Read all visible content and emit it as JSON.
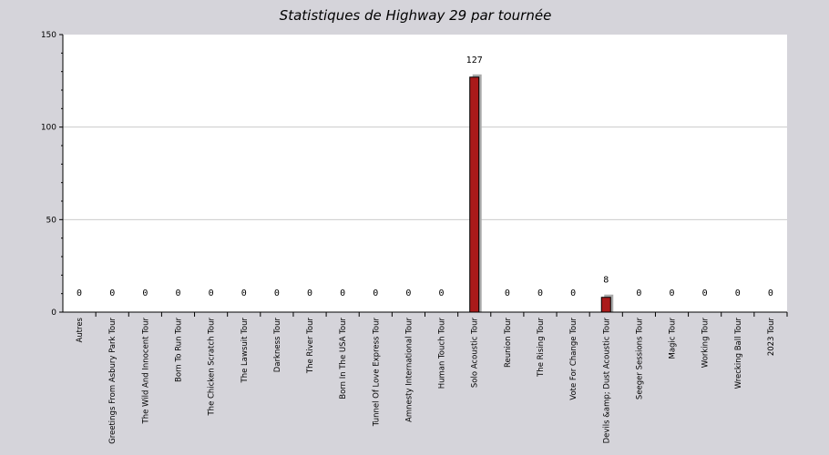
{
  "colors": {
    "background": "#d5d4da",
    "plot_background": "#ffffff",
    "bar_fill": "#aa1a1a",
    "bar_shadow": "#aaaaaa",
    "gridline": "#cccccc",
    "axis": "#000000"
  },
  "chart_data": {
    "type": "bar",
    "title": "Statistiques de Highway 29 par tournée",
    "xlabel": "",
    "ylabel": "",
    "ylim": [
      0,
      150
    ],
    "yticks": [
      0,
      50,
      100,
      150
    ],
    "grid": true,
    "legend": "none",
    "categories": [
      "Autres",
      "Greetings From Asbury Park Tour",
      "The Wild And Innocent Tour",
      "Born To Run Tour",
      "The Chicken Scratch Tour",
      "The Lawsuit Tour",
      "Darkness Tour",
      "The River Tour",
      "Born In The USA Tour",
      "Tunnel Of Love Express Tour",
      "Amnesty International Tour",
      "Human Touch Tour",
      "Solo Acoustic Tour",
      "Reunion Tour",
      "The Rising Tour",
      "Vote For Change Tour",
      "Devils &amp; Dust Acoustic Tour",
      "Seeger Sessions Tour",
      "Magic Tour",
      "Working Tour",
      "Wrecking Ball Tour",
      "2023 Tour"
    ],
    "values": [
      0,
      0,
      0,
      0,
      0,
      0,
      0,
      0,
      0,
      0,
      0,
      0,
      127,
      0,
      0,
      0,
      8,
      0,
      0,
      0,
      0,
      0
    ],
    "data_labels": [
      "0",
      "0",
      "0",
      "0",
      "0",
      "0",
      "0",
      "0",
      "0",
      "0",
      "0",
      "0",
      "127",
      "0",
      "0",
      "0",
      "8",
      "0",
      "0",
      "0",
      "0",
      "0"
    ]
  }
}
